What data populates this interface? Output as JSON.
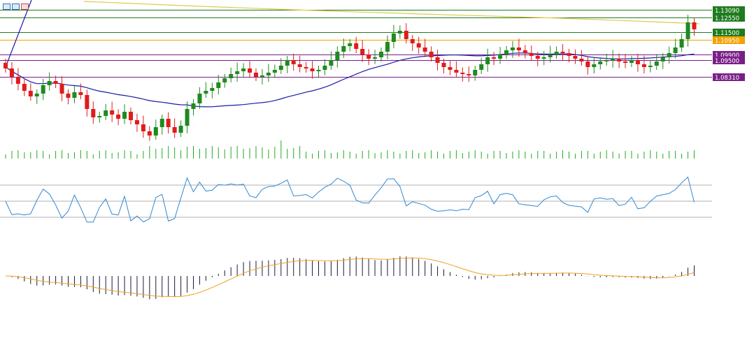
{
  "chart_data": {
    "type": "candlestick",
    "price_levels": [
      {
        "label": "1.13090",
        "value": 1.1309,
        "color": "#1e7b1e"
      },
      {
        "label": "1.12550",
        "value": 1.1255,
        "color": "#1e7b1e"
      },
      {
        "label": "1.11500",
        "value": 1.115,
        "color": "#1e7b1e"
      },
      {
        "label": "1.10950",
        "value": 1.1095,
        "color": "#f5a100"
      },
      {
        "label": "1.09900",
        "value": 1.099,
        "color": "#7a1f88"
      },
      {
        "label": "1.09500",
        "value": 1.095,
        "color": "#7a1f88"
      },
      {
        "label": "1.08310",
        "value": 1.0831,
        "color": "#7a1f88"
      }
    ],
    "candle_closes": [
      1.089,
      1.083,
      1.078,
      1.073,
      1.069,
      1.071,
      1.077,
      1.08,
      1.078,
      1.071,
      1.068,
      1.072,
      1.07,
      1.06,
      1.054,
      1.055,
      1.059,
      1.056,
      1.053,
      1.058,
      1.052,
      1.049,
      1.044,
      1.041,
      1.047,
      1.053,
      1.047,
      1.043,
      1.048,
      1.06,
      1.064,
      1.071,
      1.073,
      1.075,
      1.079,
      1.082,
      1.085,
      1.087,
      1.089,
      1.086,
      1.083,
      1.084,
      1.086,
      1.088,
      1.091,
      1.095,
      1.092,
      1.09,
      1.089,
      1.087,
      1.088,
      1.091,
      1.095,
      1.101,
      1.105,
      1.107,
      1.103,
      1.099,
      1.096,
      1.097,
      1.101,
      1.108,
      1.114,
      1.116,
      1.11,
      1.107,
      1.104,
      1.101,
      1.097,
      1.093,
      1.09,
      1.088,
      1.086,
      1.085,
      1.084,
      1.088,
      1.092,
      1.097,
      1.096,
      1.099,
      1.102,
      1.104,
      1.102,
      1.1,
      1.098,
      1.096,
      1.097,
      1.099,
      1.101,
      1.1,
      1.098,
      1.096,
      1.094,
      1.09,
      1.092,
      1.094,
      1.095,
      1.096,
      1.094,
      1.093,
      1.095,
      1.092,
      1.09,
      1.091,
      1.094,
      1.097,
      1.1,
      1.104,
      1.11,
      1.122,
      1.117
    ],
    "series": [
      {
        "name": "",
        "color": "#1a1aa6"
      },
      {
        "name": "",
        "color": "#e0c84a"
      }
    ],
    "rsi_levels": [
      70,
      50,
      30
    ],
    "volume_color": "#22aa22",
    "macd_colors": {
      "histogram": "#1a1a40",
      "signal": "#f0a020"
    }
  }
}
